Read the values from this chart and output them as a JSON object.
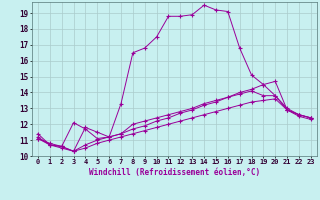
{
  "xlabel": "Windchill (Refroidissement éolien,°C)",
  "background_color": "#c8f0f0",
  "line_color": "#990099",
  "grid_color": "#aacccc",
  "xlim": [
    -0.5,
    23.5
  ],
  "ylim": [
    10.0,
    19.7
  ],
  "yticks": [
    10,
    11,
    12,
    13,
    14,
    15,
    16,
    17,
    18,
    19
  ],
  "xticks": [
    0,
    1,
    2,
    3,
    4,
    5,
    6,
    7,
    8,
    9,
    10,
    11,
    12,
    13,
    14,
    15,
    16,
    17,
    18,
    19,
    20,
    21,
    22,
    23
  ],
  "line1_y": [
    11.4,
    10.7,
    10.6,
    12.1,
    11.7,
    11.1,
    11.2,
    13.3,
    16.5,
    16.8,
    17.5,
    18.8,
    18.8,
    18.9,
    19.5,
    19.2,
    19.1,
    16.8,
    15.1,
    14.5,
    13.8,
    12.9,
    12.6,
    12.4
  ],
  "line2_y": [
    11.2,
    10.7,
    10.6,
    10.3,
    11.8,
    11.5,
    11.2,
    11.4,
    12.0,
    12.2,
    12.4,
    12.6,
    12.8,
    13.0,
    13.3,
    13.5,
    13.7,
    13.9,
    14.1,
    13.8,
    13.8,
    13.0,
    12.6,
    12.4
  ],
  "line3_y": [
    11.1,
    10.8,
    10.6,
    10.3,
    10.7,
    11.0,
    11.2,
    11.4,
    11.7,
    11.9,
    12.2,
    12.4,
    12.7,
    12.9,
    13.2,
    13.4,
    13.7,
    14.0,
    14.2,
    14.5,
    14.7,
    12.9,
    12.6,
    12.4
  ],
  "line4_y": [
    11.1,
    10.7,
    10.5,
    10.3,
    10.5,
    10.8,
    11.0,
    11.2,
    11.4,
    11.6,
    11.8,
    12.0,
    12.2,
    12.4,
    12.6,
    12.8,
    13.0,
    13.2,
    13.4,
    13.5,
    13.6,
    12.9,
    12.5,
    12.3
  ]
}
